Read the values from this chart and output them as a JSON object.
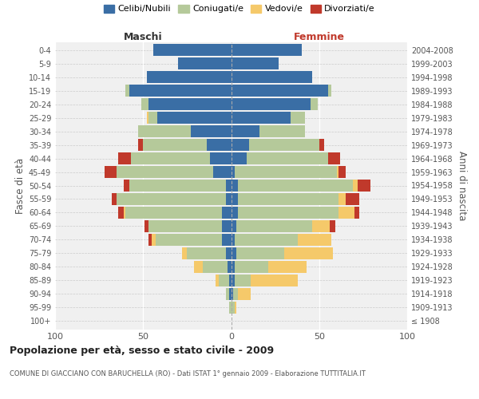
{
  "age_groups": [
    "100+",
    "95-99",
    "90-94",
    "85-89",
    "80-84",
    "75-79",
    "70-74",
    "65-69",
    "60-64",
    "55-59",
    "50-54",
    "45-49",
    "40-44",
    "35-39",
    "30-34",
    "25-29",
    "20-24",
    "15-19",
    "10-14",
    "5-9",
    "0-4"
  ],
  "birth_years": [
    "≤ 1908",
    "1909-1913",
    "1914-1918",
    "1919-1923",
    "1924-1928",
    "1929-1933",
    "1934-1938",
    "1939-1943",
    "1944-1948",
    "1949-1953",
    "1954-1958",
    "1959-1963",
    "1964-1968",
    "1969-1973",
    "1974-1978",
    "1979-1983",
    "1984-1988",
    "1989-1993",
    "1994-1998",
    "1999-2003",
    "2004-2008"
  ],
  "males": {
    "celibi": [
      0,
      0,
      1,
      1,
      2,
      3,
      5,
      5,
      5,
      3,
      3,
      10,
      12,
      14,
      23,
      42,
      47,
      58,
      48,
      30,
      44
    ],
    "coniugati": [
      0,
      1,
      2,
      6,
      14,
      22,
      38,
      42,
      55,
      62,
      55,
      55,
      45,
      36,
      30,
      5,
      4,
      2,
      0,
      0,
      0
    ],
    "vedovi": [
      0,
      0,
      0,
      2,
      5,
      3,
      2,
      0,
      1,
      0,
      0,
      0,
      0,
      0,
      0,
      1,
      0,
      0,
      0,
      0,
      0
    ],
    "divorziati": [
      0,
      0,
      0,
      0,
      0,
      0,
      2,
      2,
      3,
      3,
      3,
      7,
      7,
      3,
      0,
      0,
      0,
      0,
      0,
      0,
      0
    ]
  },
  "females": {
    "nubili": [
      0,
      0,
      1,
      2,
      2,
      3,
      2,
      3,
      4,
      4,
      4,
      2,
      9,
      10,
      16,
      34,
      45,
      55,
      46,
      27,
      40
    ],
    "coniugate": [
      0,
      2,
      3,
      9,
      19,
      27,
      36,
      43,
      57,
      57,
      65,
      58,
      46,
      40,
      26,
      8,
      4,
      2,
      0,
      0,
      0
    ],
    "vedove": [
      0,
      1,
      7,
      27,
      22,
      28,
      19,
      10,
      9,
      4,
      3,
      1,
      0,
      0,
      0,
      0,
      0,
      0,
      0,
      0,
      0
    ],
    "divorziate": [
      0,
      0,
      0,
      0,
      0,
      0,
      0,
      3,
      3,
      8,
      7,
      4,
      7,
      3,
      0,
      0,
      0,
      0,
      0,
      0,
      0
    ]
  },
  "colors": {
    "celibi": "#3a6ea5",
    "coniugati": "#b5c99a",
    "vedovi": "#f5c96a",
    "divorziati": "#c0392b"
  },
  "xlim": 100,
  "title": "Popolazione per età, sesso e stato civile - 2009",
  "subtitle": "COMUNE DI GIACCIANO CON BARUCHELLA (RO) - Dati ISTAT 1° gennaio 2009 - Elaborazione TUTTITALIA.IT",
  "ylabel_left": "Fasce di età",
  "ylabel_right": "Anni di nascita",
  "xlabel_left": "Maschi",
  "xlabel_right": "Femmine",
  "bg_color": "#f0f0f0",
  "bar_height": 0.85
}
